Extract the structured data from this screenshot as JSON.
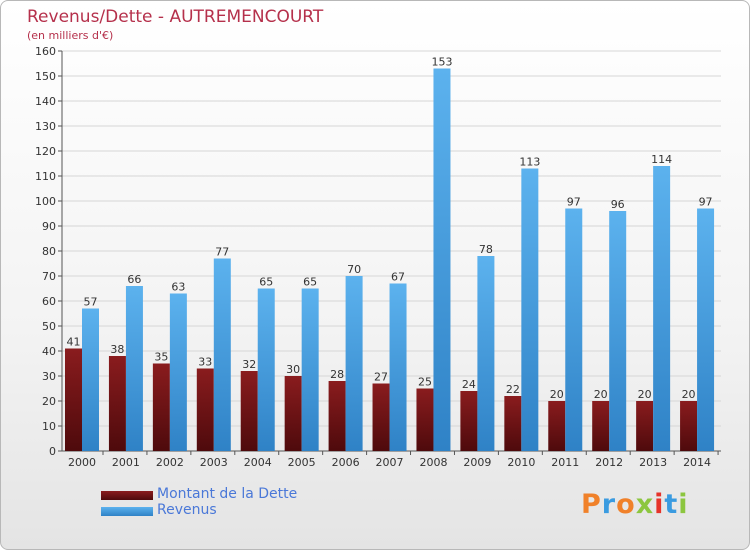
{
  "title": "Revenus/Dette - AUTREMENCOURT",
  "subtitle": "(en milliers d'€)",
  "logo_text": "Proxiti",
  "colors": {
    "title": "#b5304b",
    "dette": "#7a1417",
    "revenus": "#3d97dc",
    "legend_text": "#4a78d8"
  },
  "legend": [
    {
      "name": "Montant de la Dette",
      "color": "#7a1417"
    },
    {
      "name": "Revenus",
      "color": "#3d97dc"
    }
  ],
  "chart_data": {
    "type": "bar",
    "title": "Revenus/Dette - AUTREMENCOURT",
    "subtitle": "(en milliers d'€)",
    "categories": [
      "2000",
      "2001",
      "2002",
      "2003",
      "2004",
      "2005",
      "2006",
      "2007",
      "2008",
      "2009",
      "2010",
      "2011",
      "2012",
      "2013",
      "2014"
    ],
    "series": [
      {
        "name": "Montant de la Dette",
        "color": "#7a1417",
        "values": [
          41,
          38,
          35,
          33,
          32,
          30,
          28,
          27,
          25,
          24,
          22,
          20,
          20,
          20,
          20
        ]
      },
      {
        "name": "Revenus",
        "color": "#3d97dc",
        "values": [
          57,
          66,
          63,
          77,
          65,
          65,
          70,
          67,
          153,
          78,
          113,
          97,
          96,
          114,
          97
        ]
      }
    ],
    "ylim": [
      0,
      160
    ],
    "yticks": [
      0,
      10,
      20,
      30,
      40,
      50,
      60,
      70,
      80,
      90,
      100,
      110,
      120,
      130,
      140,
      150,
      160
    ],
    "grid": true,
    "legend_position": "bottom-left"
  }
}
